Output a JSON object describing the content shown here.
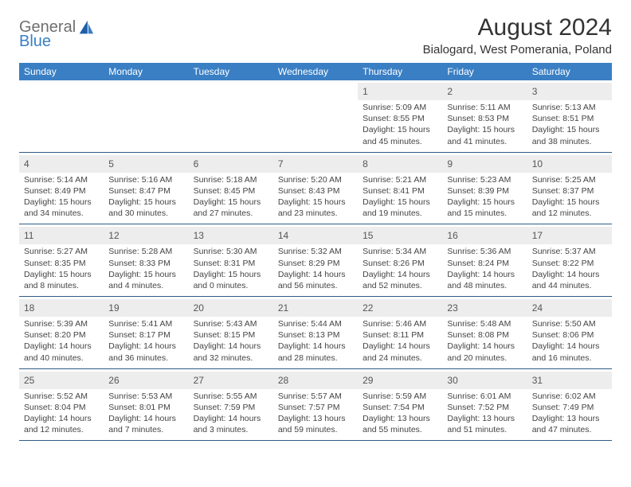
{
  "logo": {
    "word1": "General",
    "word2": "Blue"
  },
  "header": {
    "title": "August 2024",
    "subtitle": "Bialogard, West Pomerania, Poland"
  },
  "colors": {
    "header_bar": "#3a7fc4",
    "header_text": "#ffffff",
    "daynum_bg": "#ededed",
    "rule": "#2f5a86",
    "body_text": "#444444",
    "logo_gray": "#6f6f6f",
    "logo_blue": "#3a7fc4"
  },
  "dayNames": [
    "Sunday",
    "Monday",
    "Tuesday",
    "Wednesday",
    "Thursday",
    "Friday",
    "Saturday"
  ],
  "labels": {
    "sunrise": "Sunrise:",
    "sunset": "Sunset:",
    "daylight": "Daylight:"
  },
  "startOffset": 4,
  "days": [
    {
      "n": 1,
      "rise": "5:09 AM",
      "set": "8:55 PM",
      "dl1": "15 hours",
      "dl2": "and 45 minutes."
    },
    {
      "n": 2,
      "rise": "5:11 AM",
      "set": "8:53 PM",
      "dl1": "15 hours",
      "dl2": "and 41 minutes."
    },
    {
      "n": 3,
      "rise": "5:13 AM",
      "set": "8:51 PM",
      "dl1": "15 hours",
      "dl2": "and 38 minutes."
    },
    {
      "n": 4,
      "rise": "5:14 AM",
      "set": "8:49 PM",
      "dl1": "15 hours",
      "dl2": "and 34 minutes."
    },
    {
      "n": 5,
      "rise": "5:16 AM",
      "set": "8:47 PM",
      "dl1": "15 hours",
      "dl2": "and 30 minutes."
    },
    {
      "n": 6,
      "rise": "5:18 AM",
      "set": "8:45 PM",
      "dl1": "15 hours",
      "dl2": "and 27 minutes."
    },
    {
      "n": 7,
      "rise": "5:20 AM",
      "set": "8:43 PM",
      "dl1": "15 hours",
      "dl2": "and 23 minutes."
    },
    {
      "n": 8,
      "rise": "5:21 AM",
      "set": "8:41 PM",
      "dl1": "15 hours",
      "dl2": "and 19 minutes."
    },
    {
      "n": 9,
      "rise": "5:23 AM",
      "set": "8:39 PM",
      "dl1": "15 hours",
      "dl2": "and 15 minutes."
    },
    {
      "n": 10,
      "rise": "5:25 AM",
      "set": "8:37 PM",
      "dl1": "15 hours",
      "dl2": "and 12 minutes."
    },
    {
      "n": 11,
      "rise": "5:27 AM",
      "set": "8:35 PM",
      "dl1": "15 hours",
      "dl2": "and 8 minutes."
    },
    {
      "n": 12,
      "rise": "5:28 AM",
      "set": "8:33 PM",
      "dl1": "15 hours",
      "dl2": "and 4 minutes."
    },
    {
      "n": 13,
      "rise": "5:30 AM",
      "set": "8:31 PM",
      "dl1": "15 hours",
      "dl2": "and 0 minutes."
    },
    {
      "n": 14,
      "rise": "5:32 AM",
      "set": "8:29 PM",
      "dl1": "14 hours",
      "dl2": "and 56 minutes."
    },
    {
      "n": 15,
      "rise": "5:34 AM",
      "set": "8:26 PM",
      "dl1": "14 hours",
      "dl2": "and 52 minutes."
    },
    {
      "n": 16,
      "rise": "5:36 AM",
      "set": "8:24 PM",
      "dl1": "14 hours",
      "dl2": "and 48 minutes."
    },
    {
      "n": 17,
      "rise": "5:37 AM",
      "set": "8:22 PM",
      "dl1": "14 hours",
      "dl2": "and 44 minutes."
    },
    {
      "n": 18,
      "rise": "5:39 AM",
      "set": "8:20 PM",
      "dl1": "14 hours",
      "dl2": "and 40 minutes."
    },
    {
      "n": 19,
      "rise": "5:41 AM",
      "set": "8:17 PM",
      "dl1": "14 hours",
      "dl2": "and 36 minutes."
    },
    {
      "n": 20,
      "rise": "5:43 AM",
      "set": "8:15 PM",
      "dl1": "14 hours",
      "dl2": "and 32 minutes."
    },
    {
      "n": 21,
      "rise": "5:44 AM",
      "set": "8:13 PM",
      "dl1": "14 hours",
      "dl2": "and 28 minutes."
    },
    {
      "n": 22,
      "rise": "5:46 AM",
      "set": "8:11 PM",
      "dl1": "14 hours",
      "dl2": "and 24 minutes."
    },
    {
      "n": 23,
      "rise": "5:48 AM",
      "set": "8:08 PM",
      "dl1": "14 hours",
      "dl2": "and 20 minutes."
    },
    {
      "n": 24,
      "rise": "5:50 AM",
      "set": "8:06 PM",
      "dl1": "14 hours",
      "dl2": "and 16 minutes."
    },
    {
      "n": 25,
      "rise": "5:52 AM",
      "set": "8:04 PM",
      "dl1": "14 hours",
      "dl2": "and 12 minutes."
    },
    {
      "n": 26,
      "rise": "5:53 AM",
      "set": "8:01 PM",
      "dl1": "14 hours",
      "dl2": "and 7 minutes."
    },
    {
      "n": 27,
      "rise": "5:55 AM",
      "set": "7:59 PM",
      "dl1": "14 hours",
      "dl2": "and 3 minutes."
    },
    {
      "n": 28,
      "rise": "5:57 AM",
      "set": "7:57 PM",
      "dl1": "13 hours",
      "dl2": "and 59 minutes."
    },
    {
      "n": 29,
      "rise": "5:59 AM",
      "set": "7:54 PM",
      "dl1": "13 hours",
      "dl2": "and 55 minutes."
    },
    {
      "n": 30,
      "rise": "6:01 AM",
      "set": "7:52 PM",
      "dl1": "13 hours",
      "dl2": "and 51 minutes."
    },
    {
      "n": 31,
      "rise": "6:02 AM",
      "set": "7:49 PM",
      "dl1": "13 hours",
      "dl2": "and 47 minutes."
    }
  ]
}
